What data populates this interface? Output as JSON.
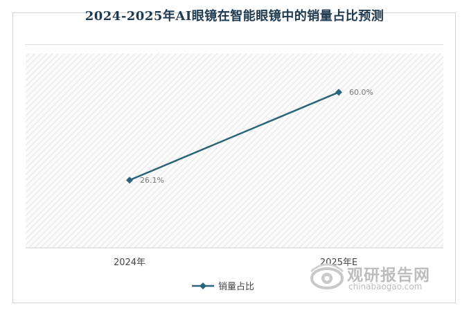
{
  "chart_data": {
    "type": "line",
    "title": "2024-2025年AI眼镜在智能眼镜中的销量占比预测",
    "categories": [
      "2024年",
      "2025年E"
    ],
    "series": [
      {
        "name": "销量占比",
        "values": [
          26.1,
          60.0
        ],
        "labels": [
          "26.1%",
          "60.0%"
        ],
        "color": "#2a6478"
      }
    ],
    "ylim": [
      0,
      75
    ],
    "grid": false,
    "legend_position": "bottom"
  },
  "watermark": {
    "text_cn": "观研报告网",
    "text_en": "chinabaogao.com",
    "logo_icon": "chinabaogao-logo-icon"
  }
}
